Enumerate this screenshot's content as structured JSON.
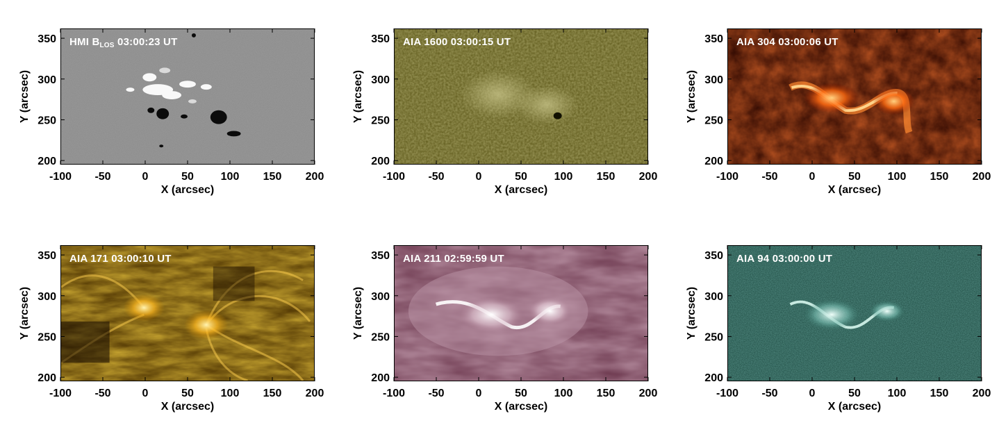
{
  "x_axis": {
    "label": "X (arcsec)",
    "ticks": [
      "-100",
      "-50",
      "0",
      "50",
      "100",
      "150",
      "200"
    ]
  },
  "y_axis": {
    "label": "Y (arcsec)",
    "ticks": [
      "350",
      "300",
      "250",
      "200"
    ]
  },
  "panels": [
    {
      "id": "hmi",
      "title_main": "HMI B",
      "title_sub": "LOS",
      "title_rest": " 03:00:23 UT",
      "colors": {
        "bg": "#8a8a8a",
        "mid": "#a8a8a8",
        "bright": "#ffffff",
        "dark": "#0a0a0a"
      }
    },
    {
      "id": "aia1600",
      "title_main": "AIA 1600 03:00:15 UT",
      "title_sub": "",
      "title_rest": "",
      "colors": {
        "bg": "#5f5a1c",
        "mid": "#8c8640",
        "bright": "#c9c58a",
        "dark": "#1a1805"
      }
    },
    {
      "id": "aia304",
      "title_main": "AIA 304 03:00:06 UT",
      "title_sub": "",
      "title_rest": "",
      "colors": {
        "bg": "#3a0a02",
        "mid": "#a5200a",
        "bright": "#ffc070",
        "dark": "#120200"
      }
    },
    {
      "id": "aia171",
      "title_main": "AIA 171 03:00:10 UT",
      "title_sub": "",
      "title_rest": "",
      "colors": {
        "bg": "#5a3c00",
        "mid": "#c08a10",
        "bright": "#ffe27a",
        "dark": "#140a00"
      }
    },
    {
      "id": "aia211",
      "title_main": "AIA 211 02:59:59 UT",
      "title_sub": "",
      "title_rest": "",
      "colors": {
        "bg": "#7a4258",
        "mid": "#b88ca0",
        "bright": "#ffffff",
        "dark": "#4a2233"
      }
    },
    {
      "id": "aia94",
      "title_main": "AIA 94 03:00:00 UT",
      "title_sub": "",
      "title_rest": "",
      "colors": {
        "bg": "#1c4a40",
        "mid": "#3e8478",
        "bright": "#e8fff8",
        "dark": "#0a2420"
      }
    }
  ]
}
